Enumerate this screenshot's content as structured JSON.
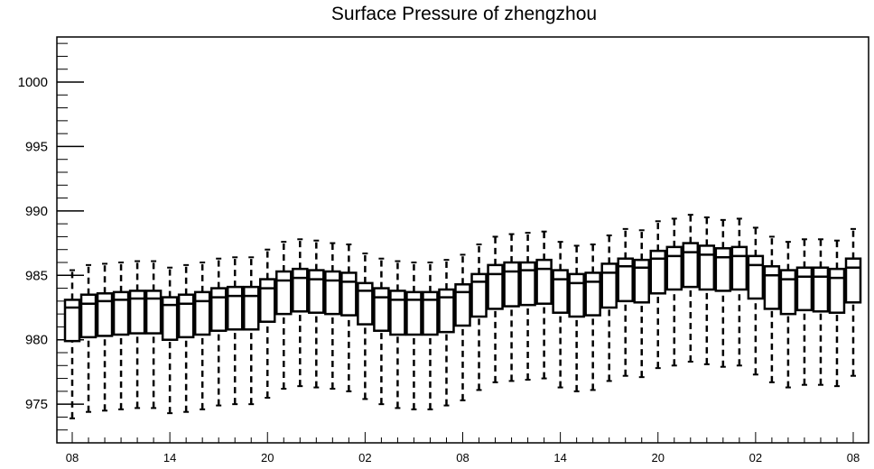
{
  "chart_data": {
    "type": "boxplot",
    "title": "Surface Pressure of zhengzhou",
    "xlabel": "",
    "ylabel": "",
    "ylim": [
      972,
      1003.5
    ],
    "yticks": [
      975,
      980,
      985,
      990,
      995,
      1000
    ],
    "xtick_labels": [
      "08",
      "14",
      "20",
      "02",
      "08",
      "14",
      "20",
      "02",
      "08"
    ],
    "xtick_positions": [
      0,
      6,
      12,
      18,
      24,
      30,
      36,
      42,
      48
    ],
    "grid": false,
    "series": [
      {
        "boxes": [
          {
            "x": 0,
            "whislo": 973.9,
            "q1": 979.9,
            "med": 982.5,
            "q3": 983.1,
            "whishi": 985.4
          },
          {
            "x": 1,
            "whislo": 974.4,
            "q1": 980.2,
            "med": 982.8,
            "q3": 983.5,
            "whishi": 985.8
          },
          {
            "x": 2,
            "whislo": 974.5,
            "q1": 980.3,
            "med": 983.0,
            "q3": 983.6,
            "whishi": 985.9
          },
          {
            "x": 3,
            "whislo": 974.6,
            "q1": 980.4,
            "med": 983.1,
            "q3": 983.7,
            "whishi": 986.0
          },
          {
            "x": 4,
            "whislo": 974.7,
            "q1": 980.5,
            "med": 983.2,
            "q3": 983.8,
            "whishi": 986.1
          },
          {
            "x": 5,
            "whislo": 974.7,
            "q1": 980.5,
            "med": 983.2,
            "q3": 983.8,
            "whishi": 986.1
          },
          {
            "x": 6,
            "whislo": 974.3,
            "q1": 980.0,
            "med": 982.7,
            "q3": 983.3,
            "whishi": 985.6
          },
          {
            "x": 7,
            "whislo": 974.4,
            "q1": 980.2,
            "med": 982.8,
            "q3": 983.5,
            "whishi": 985.8
          },
          {
            "x": 8,
            "whislo": 974.6,
            "q1": 980.4,
            "med": 983.0,
            "q3": 983.7,
            "whishi": 986.0
          },
          {
            "x": 9,
            "whislo": 974.9,
            "q1": 980.7,
            "med": 983.3,
            "q3": 984.0,
            "whishi": 986.3
          },
          {
            "x": 10,
            "whislo": 975.0,
            "q1": 980.8,
            "med": 983.4,
            "q3": 984.1,
            "whishi": 986.4
          },
          {
            "x": 11,
            "whislo": 975.0,
            "q1": 980.8,
            "med": 983.4,
            "q3": 984.1,
            "whishi": 986.4
          },
          {
            "x": 12,
            "whislo": 975.5,
            "q1": 981.4,
            "med": 984.0,
            "q3": 984.7,
            "whishi": 987.0
          },
          {
            "x": 13,
            "whislo": 976.2,
            "q1": 982.0,
            "med": 984.6,
            "q3": 985.3,
            "whishi": 987.6
          },
          {
            "x": 14,
            "whislo": 976.4,
            "q1": 982.2,
            "med": 984.8,
            "q3": 985.5,
            "whishi": 987.8
          },
          {
            "x": 15,
            "whislo": 976.3,
            "q1": 982.1,
            "med": 984.7,
            "q3": 985.4,
            "whishi": 987.7
          },
          {
            "x": 16,
            "whislo": 976.2,
            "q1": 982.0,
            "med": 984.6,
            "q3": 985.3,
            "whishi": 987.5
          },
          {
            "x": 17,
            "whislo": 976.0,
            "q1": 981.9,
            "med": 984.5,
            "q3": 985.2,
            "whishi": 987.4
          },
          {
            "x": 18,
            "whislo": 975.4,
            "q1": 981.2,
            "med": 983.8,
            "q3": 984.4,
            "whishi": 986.7
          },
          {
            "x": 19,
            "whislo": 975.0,
            "q1": 980.7,
            "med": 983.3,
            "q3": 984.0,
            "whishi": 986.3
          },
          {
            "x": 20,
            "whislo": 974.7,
            "q1": 980.4,
            "med": 983.1,
            "q3": 983.8,
            "whishi": 986.1
          },
          {
            "x": 21,
            "whislo": 974.6,
            "q1": 980.4,
            "med": 983.1,
            "q3": 983.7,
            "whishi": 986.0
          },
          {
            "x": 22,
            "whislo": 974.6,
            "q1": 980.4,
            "med": 983.1,
            "q3": 983.7,
            "whishi": 986.0
          },
          {
            "x": 23,
            "whislo": 974.9,
            "q1": 980.6,
            "med": 983.3,
            "q3": 983.9,
            "whishi": 986.2
          },
          {
            "x": 24,
            "whislo": 975.3,
            "q1": 981.1,
            "med": 983.7,
            "q3": 984.3,
            "whishi": 986.6
          },
          {
            "x": 25,
            "whislo": 976.1,
            "q1": 981.8,
            "med": 984.5,
            "q3": 985.1,
            "whishi": 987.4
          },
          {
            "x": 26,
            "whislo": 976.7,
            "q1": 982.4,
            "med": 985.1,
            "q3": 985.8,
            "whishi": 988.0
          },
          {
            "x": 27,
            "whislo": 976.8,
            "q1": 982.6,
            "med": 985.3,
            "q3": 986.0,
            "whishi": 988.2
          },
          {
            "x": 28,
            "whislo": 976.9,
            "q1": 982.7,
            "med": 985.4,
            "q3": 986.0,
            "whishi": 988.3
          },
          {
            "x": 29,
            "whislo": 977.0,
            "q1": 982.8,
            "med": 985.5,
            "q3": 986.2,
            "whishi": 988.4
          },
          {
            "x": 30,
            "whislo": 976.3,
            "q1": 982.1,
            "med": 984.7,
            "q3": 985.4,
            "whishi": 987.6
          },
          {
            "x": 31,
            "whislo": 976.0,
            "q1": 981.8,
            "med": 984.4,
            "q3": 985.1,
            "whishi": 987.3
          },
          {
            "x": 32,
            "whislo": 976.1,
            "q1": 981.9,
            "med": 984.5,
            "q3": 985.2,
            "whishi": 987.4
          },
          {
            "x": 33,
            "whislo": 976.8,
            "q1": 982.5,
            "med": 985.2,
            "q3": 985.9,
            "whishi": 988.1
          },
          {
            "x": 34,
            "whislo": 977.2,
            "q1": 983.0,
            "med": 985.7,
            "q3": 986.3,
            "whishi": 988.6
          },
          {
            "x": 35,
            "whislo": 977.1,
            "q1": 982.9,
            "med": 985.6,
            "q3": 986.2,
            "whishi": 988.5
          },
          {
            "x": 36,
            "whislo": 977.8,
            "q1": 983.6,
            "med": 986.3,
            "q3": 986.9,
            "whishi": 989.2
          },
          {
            "x": 37,
            "whislo": 978.0,
            "q1": 983.9,
            "med": 986.5,
            "q3": 987.2,
            "whishi": 989.4
          },
          {
            "x": 38,
            "whislo": 978.3,
            "q1": 984.1,
            "med": 986.8,
            "q3": 987.5,
            "whishi": 989.7
          },
          {
            "x": 39,
            "whislo": 978.1,
            "q1": 983.9,
            "med": 986.6,
            "q3": 987.3,
            "whishi": 989.5
          },
          {
            "x": 40,
            "whislo": 977.9,
            "q1": 983.8,
            "med": 986.4,
            "q3": 987.1,
            "whishi": 989.3
          },
          {
            "x": 41,
            "whislo": 978.0,
            "q1": 983.9,
            "med": 986.5,
            "q3": 987.2,
            "whishi": 989.4
          },
          {
            "x": 42,
            "whislo": 977.3,
            "q1": 983.2,
            "med": 985.8,
            "q3": 986.5,
            "whishi": 988.7
          },
          {
            "x": 43,
            "whislo": 976.7,
            "q1": 982.4,
            "med": 985.0,
            "q3": 985.7,
            "whishi": 988.0
          },
          {
            "x": 44,
            "whislo": 976.3,
            "q1": 982.0,
            "med": 984.7,
            "q3": 985.4,
            "whishi": 987.6
          },
          {
            "x": 45,
            "whislo": 976.5,
            "q1": 982.3,
            "med": 984.9,
            "q3": 985.6,
            "whishi": 987.8
          },
          {
            "x": 46,
            "whislo": 976.5,
            "q1": 982.2,
            "med": 984.9,
            "q3": 985.6,
            "whishi": 987.8
          },
          {
            "x": 47,
            "whislo": 976.4,
            "q1": 982.1,
            "med": 984.8,
            "q3": 985.5,
            "whishi": 987.7
          },
          {
            "x": 48,
            "whislo": 977.2,
            "q1": 982.9,
            "med": 985.6,
            "q3": 986.3,
            "whishi": 988.6
          }
        ]
      }
    ]
  }
}
